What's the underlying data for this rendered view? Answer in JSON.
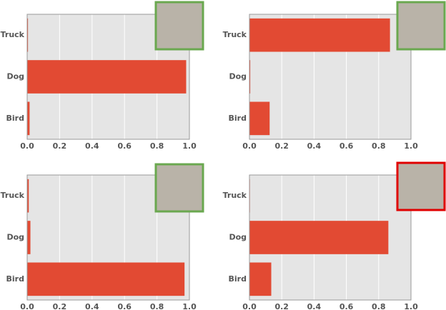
{
  "chart_data": [
    {
      "type": "bar",
      "orientation": "horizontal",
      "categories": [
        "Bird",
        "Dog",
        "Truck"
      ],
      "values": [
        0.015,
        0.98,
        0.005
      ],
      "color": "#e24a33",
      "xlim": [
        0,
        1
      ],
      "xticks": [
        {
          "value": 0,
          "label": "0.0"
        },
        {
          "value": 0.2,
          "label": "0.2"
        },
        {
          "value": 0.4,
          "label": "0.4"
        },
        {
          "value": 0.6,
          "label": "0.6"
        },
        {
          "value": 0.8,
          "label": "0.8"
        },
        {
          "value": 1,
          "label": "1.0"
        }
      ],
      "grid": true,
      "image_frame_color": "#6aa84f"
    },
    {
      "type": "bar",
      "orientation": "horizontal",
      "categories": [
        "Bird",
        "Dog",
        "Truck"
      ],
      "values": [
        0.125,
        0.005,
        0.87
      ],
      "color": "#e24a33",
      "xlim": [
        0,
        1
      ],
      "xticks": [
        {
          "value": 0,
          "label": "0.0"
        },
        {
          "value": 0.2,
          "label": "0.2"
        },
        {
          "value": 0.4,
          "label": "0.4"
        },
        {
          "value": 0.6,
          "label": "0.6"
        },
        {
          "value": 0.8,
          "label": "0.8"
        },
        {
          "value": 1,
          "label": "1.0"
        }
      ],
      "grid": true,
      "image_frame_color": "#6aa84f"
    },
    {
      "type": "bar",
      "orientation": "horizontal",
      "categories": [
        "Bird",
        "Dog",
        "Truck"
      ],
      "values": [
        0.97,
        0.02,
        0.01
      ],
      "color": "#e24a33",
      "xlim": [
        0,
        1
      ],
      "xticks": [
        {
          "value": 0,
          "label": "0.0"
        },
        {
          "value": 0.2,
          "label": "0.2"
        },
        {
          "value": 0.4,
          "label": "0.4"
        },
        {
          "value": 0.6,
          "label": "0.6"
        },
        {
          "value": 0.8,
          "label": "0.8"
        },
        {
          "value": 1,
          "label": "1.0"
        }
      ],
      "grid": true,
      "image_frame_color": "#6aa84f"
    },
    {
      "type": "bar",
      "orientation": "horizontal",
      "categories": [
        "Bird",
        "Dog",
        "Truck"
      ],
      "values": [
        0.135,
        0.86,
        0.003
      ],
      "color": "#e24a33",
      "xlim": [
        0,
        1
      ],
      "xticks": [
        {
          "value": 0,
          "label": "0.0"
        },
        {
          "value": 0.2,
          "label": "0.2"
        },
        {
          "value": 0.4,
          "label": "0.4"
        },
        {
          "value": 0.6,
          "label": "0.6"
        },
        {
          "value": 0.8,
          "label": "0.8"
        },
        {
          "value": 1,
          "label": "1.0"
        }
      ],
      "grid": true,
      "image_frame_color": "#e00000"
    }
  ]
}
